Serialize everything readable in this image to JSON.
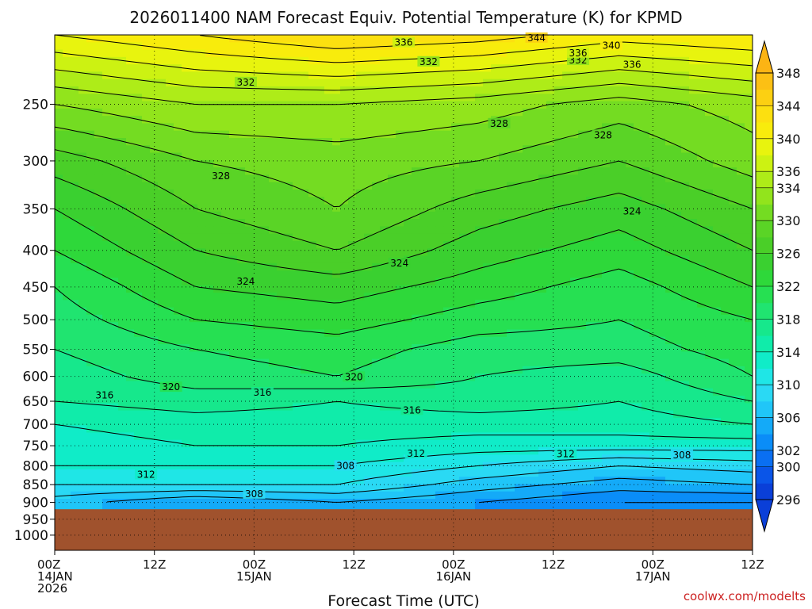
{
  "chart_data": {
    "type": "heatmap",
    "title": "2026011400 NAM Forecast Equiv. Potential Temperature (K) for KPMD",
    "xlabel": "Forecast Time (UTC)",
    "ylabel": "",
    "credit": "coolwx.com/modelts",
    "y_axis": {
      "scale": "log",
      "reversed": true,
      "range": [
        200,
        1050
      ],
      "ticks": [
        250,
        300,
        350,
        400,
        450,
        500,
        550,
        600,
        650,
        700,
        750,
        800,
        850,
        900,
        950,
        1000
      ]
    },
    "x_axis": {
      "range_hours": [
        0,
        84
      ],
      "ticks": [
        {
          "hour": 0,
          "lines": [
            "00Z",
            "14JAN",
            "2026"
          ]
        },
        {
          "hour": 12,
          "lines": [
            "12Z"
          ]
        },
        {
          "hour": 24,
          "lines": [
            "00Z",
            "15JAN"
          ]
        },
        {
          "hour": 36,
          "lines": [
            "12Z"
          ]
        },
        {
          "hour": 48,
          "lines": [
            "00Z",
            "16JAN"
          ]
        },
        {
          "hour": 60,
          "lines": [
            "12Z"
          ]
        },
        {
          "hour": 72,
          "lines": [
            "00Z",
            "17JAN"
          ]
        },
        {
          "hour": 84,
          "lines": [
            "12Z"
          ]
        }
      ]
    },
    "grid": true,
    "terrain_pressure": 920,
    "colorbar": {
      "levels": [
        296,
        298,
        300,
        302,
        304,
        306,
        308,
        310,
        312,
        314,
        316,
        318,
        320,
        322,
        324,
        326,
        328,
        330,
        332,
        334,
        336,
        338,
        340,
        342,
        344,
        346,
        348
      ],
      "labels": [
        296,
        300,
        302,
        306,
        310,
        314,
        318,
        322,
        326,
        330,
        334,
        336,
        340,
        344,
        348
      ],
      "colors": [
        "#0a3fd8",
        "#0a55e8",
        "#0a6ff2",
        "#0a8df8",
        "#14aaf8",
        "#20c6f8",
        "#2ad9f4",
        "#1fe6e6",
        "#10ecc8",
        "#10ecaa",
        "#16e88c",
        "#20e470",
        "#26e052",
        "#2ed83a",
        "#3ad030",
        "#4acf28",
        "#5ad426",
        "#74dc22",
        "#92e41c",
        "#aeec18",
        "#ccf212",
        "#e8f40e",
        "#f8ec0c",
        "#fce010",
        "#fcd012",
        "#fcc014"
      ]
    },
    "contours": [
      {
        "value": 308,
        "label_pos": [
          [
            35,
            800
          ],
          [
            24,
            876
          ],
          [
            75.5,
            773
          ]
        ]
      },
      {
        "value": 312,
        "label_pos": [
          [
            43.5,
            769
          ],
          [
            11,
            823
          ],
          [
            61.5,
            770
          ]
        ]
      },
      {
        "value": 316,
        "label_pos": [
          [
            6,
            638
          ],
          [
            25,
            632
          ],
          [
            43,
            669
          ]
        ]
      },
      {
        "value": 320,
        "label_pos": [
          [
            14,
            621
          ],
          [
            36,
            601
          ]
        ]
      },
      {
        "value": 324,
        "label_pos": [
          [
            23,
            442
          ],
          [
            41.5,
            417
          ],
          [
            69.5,
            353
          ]
        ]
      },
      {
        "value": 328,
        "label_pos": [
          [
            20,
            315
          ],
          [
            53.5,
            266
          ],
          [
            66,
            276
          ]
        ]
      },
      {
        "value": 332,
        "label_pos": [
          [
            23,
            233
          ],
          [
            45,
            218
          ],
          [
            63,
            217
          ]
        ]
      },
      {
        "value": 336,
        "label_pos": [
          [
            42,
            205
          ],
          [
            69.5,
            220
          ],
          [
            63,
            212
          ]
        ]
      },
      {
        "value": 340,
        "label_pos": [
          [
            67,
            207
          ]
        ]
      },
      {
        "value": 344,
        "label_pos": [
          [
            58,
            202
          ]
        ]
      }
    ],
    "value_by_level": [
      {
        "p": 200,
        "values": [
          340,
          342,
          344,
          343,
          341,
          342
        ]
      },
      {
        "p": 250,
        "values": [
          332,
          334,
          334,
          333,
          331,
          333
        ]
      },
      {
        "p": 300,
        "values": [
          327,
          330,
          331,
          330,
          328,
          331
        ]
      },
      {
        "p": 350,
        "values": [
          324,
          328,
          330,
          327,
          325,
          328
        ]
      },
      {
        "p": 400,
        "values": [
          322,
          326,
          328,
          325,
          323,
          326
        ]
      },
      {
        "p": 450,
        "values": [
          320,
          324,
          325,
          323,
          321,
          324
        ]
      },
      {
        "p": 500,
        "values": [
          319,
          322,
          323,
          321,
          320,
          322
        ]
      },
      {
        "p": 550,
        "values": [
          318,
          320,
          321,
          319,
          319,
          321
        ]
      },
      {
        "p": 600,
        "values": [
          317,
          319,
          320,
          318,
          317,
          320
        ]
      },
      {
        "p": 650,
        "values": [
          316,
          317,
          316,
          317,
          316,
          318
        ]
      },
      {
        "p": 700,
        "values": [
          314,
          315,
          315,
          315,
          315,
          316
        ]
      },
      {
        "p": 750,
        "values": [
          313,
          314,
          314,
          313,
          313,
          313
        ]
      },
      {
        "p": 800,
        "values": [
          312,
          312,
          312,
          310,
          308,
          309
        ]
      },
      {
        "p": 850,
        "values": [
          310,
          310,
          310,
          307,
          305,
          306
        ]
      },
      {
        "p": 900,
        "values": [
          307,
          304,
          306,
          304,
          302,
          302
        ]
      }
    ],
    "value_hours": [
      0,
      17,
      34,
      51,
      68,
      84
    ]
  }
}
